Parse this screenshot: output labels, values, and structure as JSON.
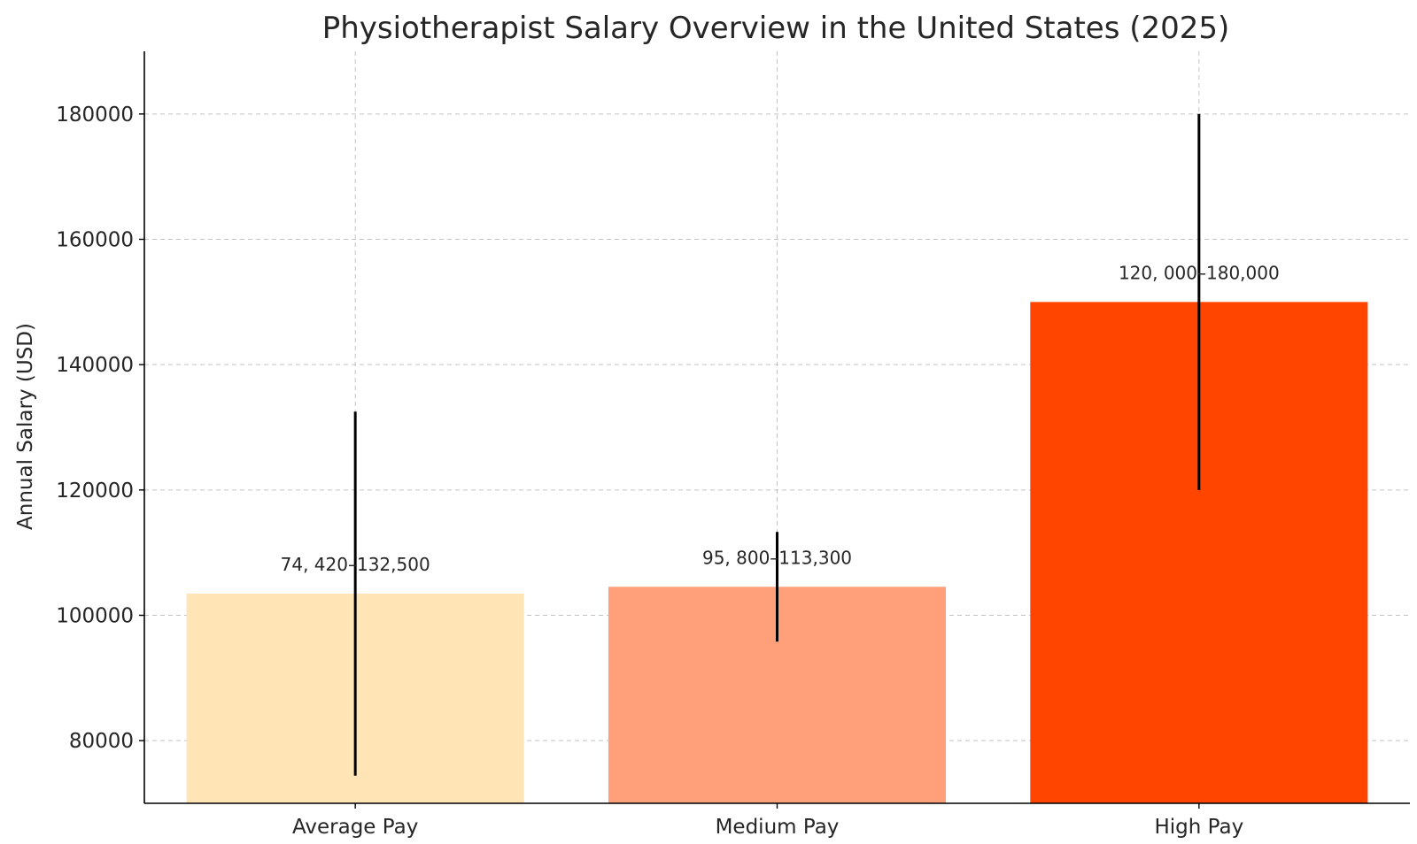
{
  "chart_data": {
    "type": "bar",
    "title": "Physiotherapist Salary Overview in the United States (2025)",
    "xlabel": "",
    "ylabel": "Annual Salary (USD)",
    "categories": [
      "Average Pay",
      "Medium Pay",
      "High Pay"
    ],
    "values": [
      103460,
      104550,
      150000
    ],
    "ranges": [
      [
        74420,
        132500
      ],
      [
        95800,
        113300
      ],
      [
        120000,
        180000
      ]
    ],
    "range_labels": [
      "74, 420–132,500",
      "95, 800–113,300",
      "120, 000–180,000"
    ],
    "colors": [
      "#FFE4B5",
      "#FFA07A",
      "#FF4500"
    ],
    "ylim": [
      70000,
      190000
    ],
    "yticks": [
      80000,
      100000,
      120000,
      140000,
      160000,
      180000
    ],
    "grid": true,
    "legend": "none"
  }
}
